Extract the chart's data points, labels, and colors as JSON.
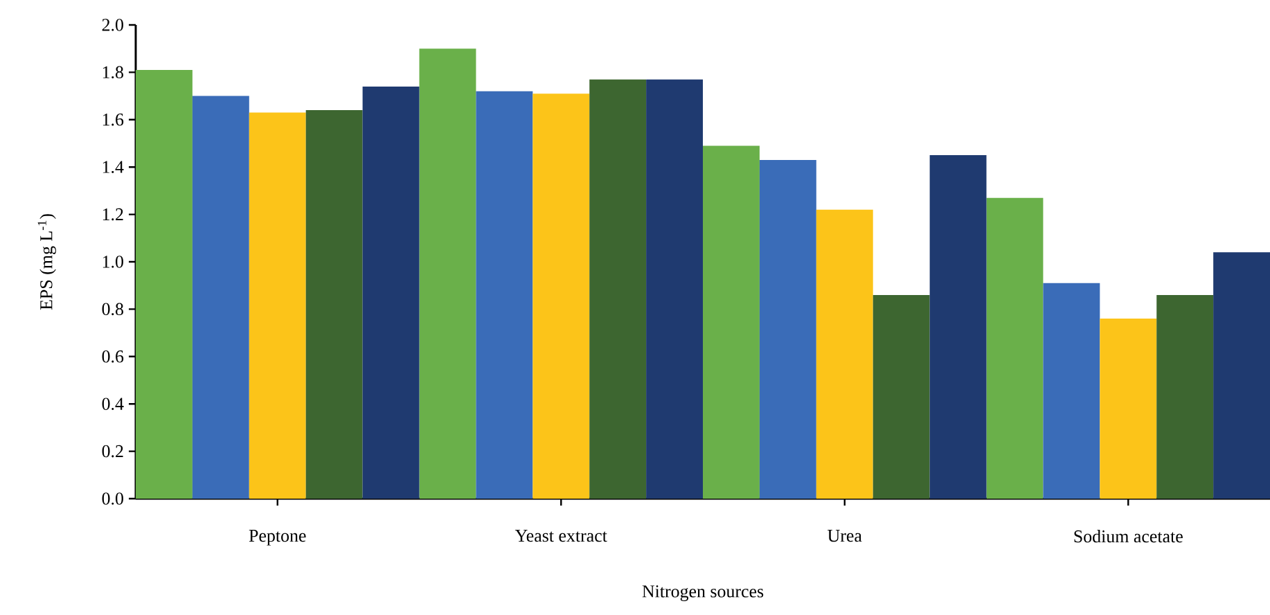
{
  "chart_data": {
    "type": "bar",
    "xlabel": "Nitrogen sources",
    "ylabel": "EPS (mg L$^{-1}$)",
    "categories": [
      "Peptone",
      "Yeast extract",
      "Urea",
      "Sodium acetate"
    ],
    "series": [
      {
        "color": "#6ab04a",
        "values": [
          1.81,
          1.9,
          1.49,
          1.27
        ]
      },
      {
        "color": "#3a6cb8",
        "values": [
          1.7,
          1.72,
          1.43,
          0.91
        ]
      },
      {
        "color": "#fcc419",
        "values": [
          1.63,
          1.71,
          1.22,
          0.76
        ]
      },
      {
        "color": "#3d6630",
        "values": [
          1.64,
          1.77,
          0.86,
          0.86
        ]
      },
      {
        "color": "#1f3a70",
        "values": [
          1.74,
          1.77,
          1.45,
          1.04
        ]
      }
    ],
    "ylim": [
      0,
      2.0
    ],
    "yticks": [
      {
        "value": 0,
        "label": "0.0"
      },
      {
        "value": 0.2,
        "label": "0.2"
      },
      {
        "value": 0.4,
        "label": "0.4"
      },
      {
        "value": 0.6,
        "label": "0.6"
      },
      {
        "value": 0.8,
        "label": "0.8"
      },
      {
        "value": 1.0,
        "label": "1.0"
      },
      {
        "value": 1.2,
        "label": "1.2"
      },
      {
        "value": 1.4,
        "label": "1.4"
      },
      {
        "value": 1.6,
        "label": "1.6"
      },
      {
        "value": 1.8,
        "label": "1.8"
      },
      {
        "value": 2.0,
        "label": "2.0"
      }
    ],
    "grid": false
  }
}
